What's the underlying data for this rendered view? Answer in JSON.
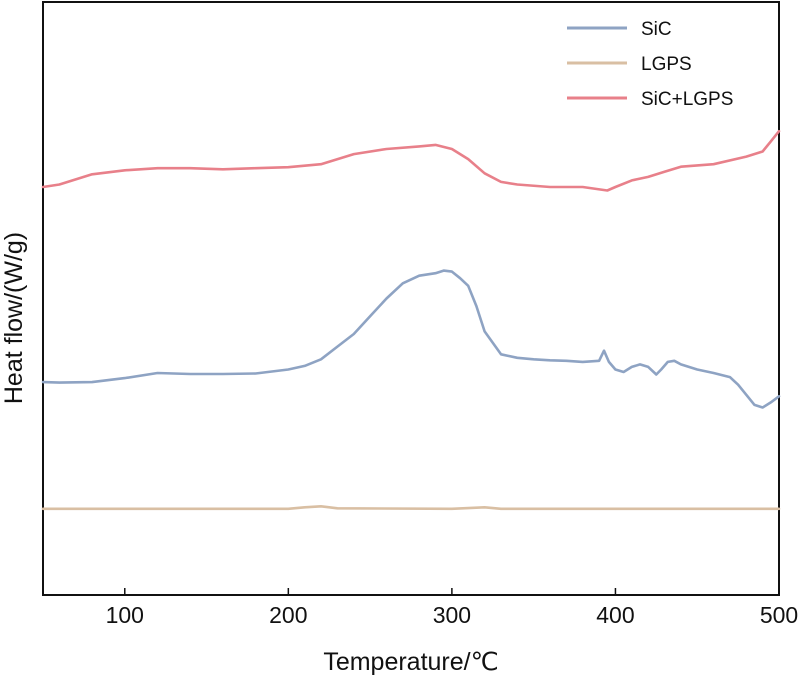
{
  "chart_data": {
    "type": "line",
    "xlabel": "Temperature/℃",
    "ylabel": "Heat flow/(W/g)",
    "xlim": [
      50,
      500
    ],
    "xticks": [
      "100",
      "200",
      "300",
      "400",
      "500"
    ],
    "yticks_shown": false,
    "legend": {
      "position": "top-right",
      "entries": [
        "SiC",
        "LGPS",
        "SiC+LGPS"
      ]
    },
    "series": [
      {
        "name": "SiC",
        "color": "#8ea3c3",
        "x": [
          50,
          60,
          80,
          100,
          120,
          140,
          160,
          180,
          200,
          210,
          220,
          230,
          240,
          250,
          260,
          270,
          280,
          290,
          295,
          300,
          305,
          310,
          315,
          320,
          330,
          340,
          350,
          360,
          370,
          380,
          390,
          393,
          396,
          400,
          405,
          410,
          415,
          420,
          425,
          428,
          432,
          436,
          440,
          450,
          460,
          470,
          475,
          480,
          485,
          490,
          495,
          500
        ],
        "y": [
          1.0,
          0.99,
          1.0,
          1.08,
          1.18,
          1.16,
          1.16,
          1.17,
          1.25,
          1.32,
          1.45,
          1.7,
          1.95,
          2.3,
          2.65,
          2.95,
          3.1,
          3.15,
          3.2,
          3.18,
          3.05,
          2.9,
          2.5,
          2.0,
          1.55,
          1.48,
          1.45,
          1.43,
          1.42,
          1.4,
          1.42,
          1.62,
          1.4,
          1.25,
          1.2,
          1.3,
          1.35,
          1.3,
          1.15,
          1.25,
          1.4,
          1.42,
          1.35,
          1.25,
          1.18,
          1.1,
          0.95,
          0.75,
          0.55,
          0.5,
          0.6,
          0.72
        ]
      },
      {
        "name": "LGPS",
        "color": "#d9bfa3",
        "x": [
          50,
          100,
          150,
          200,
          210,
          220,
          230,
          300,
          320,
          330,
          400,
          450,
          500
        ],
        "y": [
          -1.5,
          -1.5,
          -1.5,
          -1.5,
          -1.47,
          -1.45,
          -1.49,
          -1.5,
          -1.47,
          -1.5,
          -1.5,
          -1.5,
          -1.5
        ]
      },
      {
        "name": "SiC+LGPS",
        "color": "#e8808a",
        "x": [
          50,
          60,
          80,
          100,
          120,
          140,
          160,
          180,
          200,
          220,
          240,
          260,
          280,
          290,
          300,
          310,
          320,
          330,
          340,
          360,
          380,
          395,
          400,
          410,
          420,
          430,
          440,
          460,
          480,
          490,
          495,
          500
        ],
        "y": [
          4.85,
          4.9,
          5.1,
          5.18,
          5.22,
          5.22,
          5.2,
          5.22,
          5.24,
          5.3,
          5.5,
          5.6,
          5.65,
          5.68,
          5.6,
          5.4,
          5.12,
          4.95,
          4.9,
          4.85,
          4.85,
          4.78,
          4.85,
          4.98,
          5.05,
          5.15,
          5.25,
          5.3,
          5.45,
          5.55,
          5.75,
          5.95
        ]
      }
    ]
  }
}
